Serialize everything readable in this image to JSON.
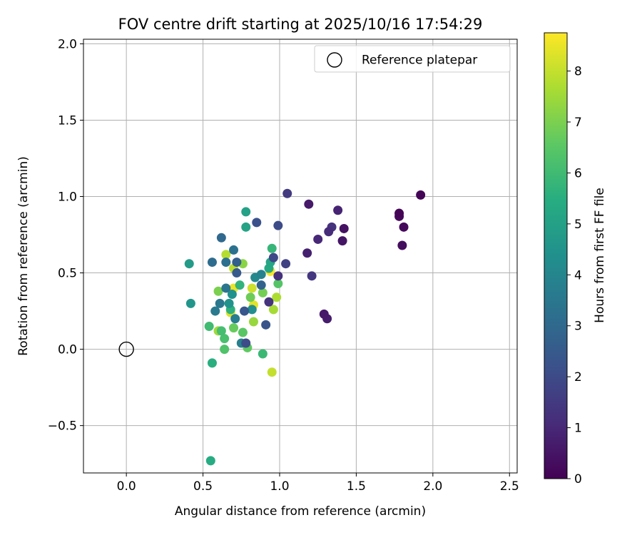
{
  "chart_data": {
    "type": "scatter",
    "title": "FOV centre drift starting at 2025/10/16 17:54:29",
    "xlabel": "Angular distance from reference (arcmin)",
    "ylabel": "Rotation from reference (arcmin)",
    "xlim": [
      -0.28,
      2.55
    ],
    "ylim": [
      -0.81,
      2.03
    ],
    "xticks": [
      0.0,
      0.5,
      1.0,
      1.5,
      2.0,
      2.5
    ],
    "xtick_labels": [
      "0.0",
      "0.5",
      "1.0",
      "1.5",
      "2.0",
      "2.5"
    ],
    "yticks": [
      -0.5,
      0.0,
      0.5,
      1.0,
      1.5,
      2.0
    ],
    "ytick_labels": [
      "−0.5",
      "0.0",
      "0.5",
      "1.0",
      "1.5",
      "2.0"
    ],
    "grid": true,
    "legend": {
      "label": "Reference platepar",
      "position": "top-right"
    },
    "reference_point": {
      "x": 0.0,
      "y": 0.0
    },
    "colorbar": {
      "label": "Hours from first FF file",
      "range": [
        0,
        8.75
      ],
      "ticks": [
        0,
        1,
        2,
        3,
        4,
        5,
        6,
        7,
        8
      ],
      "tick_labels": [
        "0",
        "1",
        "2",
        "3",
        "4",
        "5",
        "6",
        "7",
        "8"
      ],
      "colormap": "viridis"
    },
    "points": [
      {
        "x": 1.92,
        "y": 1.01,
        "t": 0.1
      },
      {
        "x": 1.78,
        "y": 0.89,
        "t": 0.1
      },
      {
        "x": 1.78,
        "y": 0.87,
        "t": 0.2
      },
      {
        "x": 1.81,
        "y": 0.8,
        "t": 0.2
      },
      {
        "x": 1.8,
        "y": 0.68,
        "t": 0.3
      },
      {
        "x": 1.42,
        "y": 0.79,
        "t": 0.4
      },
      {
        "x": 1.41,
        "y": 0.71,
        "t": 0.5
      },
      {
        "x": 1.29,
        "y": 0.23,
        "t": 0.6
      },
      {
        "x": 1.31,
        "y": 0.2,
        "t": 0.7
      },
      {
        "x": 1.19,
        "y": 0.95,
        "t": 0.6
      },
      {
        "x": 1.38,
        "y": 0.91,
        "t": 0.9
      },
      {
        "x": 1.18,
        "y": 0.63,
        "t": 0.8
      },
      {
        "x": 1.25,
        "y": 0.72,
        "t": 1.0
      },
      {
        "x": 1.32,
        "y": 0.77,
        "t": 1.1
      },
      {
        "x": 1.34,
        "y": 0.8,
        "t": 1.3
      },
      {
        "x": 1.21,
        "y": 0.48,
        "t": 1.4
      },
      {
        "x": 1.05,
        "y": 1.02,
        "t": 1.5
      },
      {
        "x": 0.99,
        "y": 0.48,
        "t": 1.2
      },
      {
        "x": 0.93,
        "y": 0.31,
        "t": 1.3
      },
      {
        "x": 1.04,
        "y": 0.56,
        "t": 1.7
      },
      {
        "x": 0.96,
        "y": 0.6,
        "t": 1.9
      },
      {
        "x": 0.99,
        "y": 0.81,
        "t": 2.0
      },
      {
        "x": 0.85,
        "y": 0.83,
        "t": 2.2
      },
      {
        "x": 0.91,
        "y": 0.16,
        "t": 2.3
      },
      {
        "x": 0.78,
        "y": 0.04,
        "t": 2.0
      },
      {
        "x": 0.77,
        "y": 0.25,
        "t": 2.4
      },
      {
        "x": 0.72,
        "y": 0.5,
        "t": 2.5
      },
      {
        "x": 0.72,
        "y": 0.57,
        "t": 2.7
      },
      {
        "x": 0.88,
        "y": 0.42,
        "t": 2.8
      },
      {
        "x": 0.62,
        "y": 0.73,
        "t": 3.0
      },
      {
        "x": 0.56,
        "y": 0.57,
        "t": 3.1
      },
      {
        "x": 0.65,
        "y": 0.57,
        "t": 3.2
      },
      {
        "x": 0.7,
        "y": 0.65,
        "t": 3.3
      },
      {
        "x": 0.65,
        "y": 0.4,
        "t": 3.4
      },
      {
        "x": 0.61,
        "y": 0.3,
        "t": 3.5
      },
      {
        "x": 0.58,
        "y": 0.25,
        "t": 3.6
      },
      {
        "x": 0.71,
        "y": 0.2,
        "t": 3.7
      },
      {
        "x": 0.75,
        "y": 0.04,
        "t": 3.8
      },
      {
        "x": 0.88,
        "y": 0.49,
        "t": 3.9
      },
      {
        "x": 0.84,
        "y": 0.47,
        "t": 4.1
      },
      {
        "x": 0.82,
        "y": 0.26,
        "t": 4.3
      },
      {
        "x": 0.69,
        "y": 0.36,
        "t": 4.4
      },
      {
        "x": 0.67,
        "y": 0.3,
        "t": 4.5
      },
      {
        "x": 0.42,
        "y": 0.3,
        "t": 4.6
      },
      {
        "x": 0.41,
        "y": 0.56,
        "t": 4.8
      },
      {
        "x": 0.78,
        "y": 0.9,
        "t": 5.0
      },
      {
        "x": 0.78,
        "y": 0.8,
        "t": 5.1
      },
      {
        "x": 0.94,
        "y": 0.57,
        "t": 5.2
      },
      {
        "x": 0.93,
        "y": 0.53,
        "t": 5.3
      },
      {
        "x": 0.55,
        "y": -0.73,
        "t": 5.4
      },
      {
        "x": 0.56,
        "y": -0.09,
        "t": 5.5
      },
      {
        "x": 0.68,
        "y": 0.26,
        "t": 5.6
      },
      {
        "x": 0.74,
        "y": 0.42,
        "t": 5.7
      },
      {
        "x": 0.95,
        "y": 0.66,
        "t": 5.8
      },
      {
        "x": 0.89,
        "y": -0.03,
        "t": 5.9
      },
      {
        "x": 0.54,
        "y": 0.15,
        "t": 6.0
      },
      {
        "x": 0.62,
        "y": 0.12,
        "t": 6.1
      },
      {
        "x": 0.64,
        "y": 0.07,
        "t": 6.2
      },
      {
        "x": 0.64,
        "y": 0.0,
        "t": 6.3
      },
      {
        "x": 0.99,
        "y": 0.43,
        "t": 6.4
      },
      {
        "x": 0.76,
        "y": 0.11,
        "t": 6.5
      },
      {
        "x": 0.79,
        "y": 0.01,
        "t": 6.6
      },
      {
        "x": 0.7,
        "y": 0.14,
        "t": 6.7
      },
      {
        "x": 0.81,
        "y": 0.34,
        "t": 6.8
      },
      {
        "x": 0.89,
        "y": 0.37,
        "t": 6.9
      },
      {
        "x": 0.6,
        "y": 0.38,
        "t": 7.0
      },
      {
        "x": 0.76,
        "y": 0.56,
        "t": 7.2
      },
      {
        "x": 0.83,
        "y": 0.18,
        "t": 7.4
      },
      {
        "x": 0.6,
        "y": 0.12,
        "t": 7.5
      },
      {
        "x": 0.96,
        "y": 0.26,
        "t": 7.6
      },
      {
        "x": 0.98,
        "y": 0.34,
        "t": 7.7
      },
      {
        "x": 0.65,
        "y": 0.62,
        "t": 7.8
      },
      {
        "x": 0.7,
        "y": 0.53,
        "t": 7.9
      },
      {
        "x": 0.95,
        "y": -0.15,
        "t": 8.0
      },
      {
        "x": 0.82,
        "y": 0.4,
        "t": 8.1
      },
      {
        "x": 0.68,
        "y": 0.24,
        "t": 8.3
      },
      {
        "x": 0.83,
        "y": 0.29,
        "t": 8.4
      },
      {
        "x": 0.7,
        "y": 0.4,
        "t": 8.5
      },
      {
        "x": 0.94,
        "y": 0.51,
        "t": 8.7
      }
    ]
  }
}
